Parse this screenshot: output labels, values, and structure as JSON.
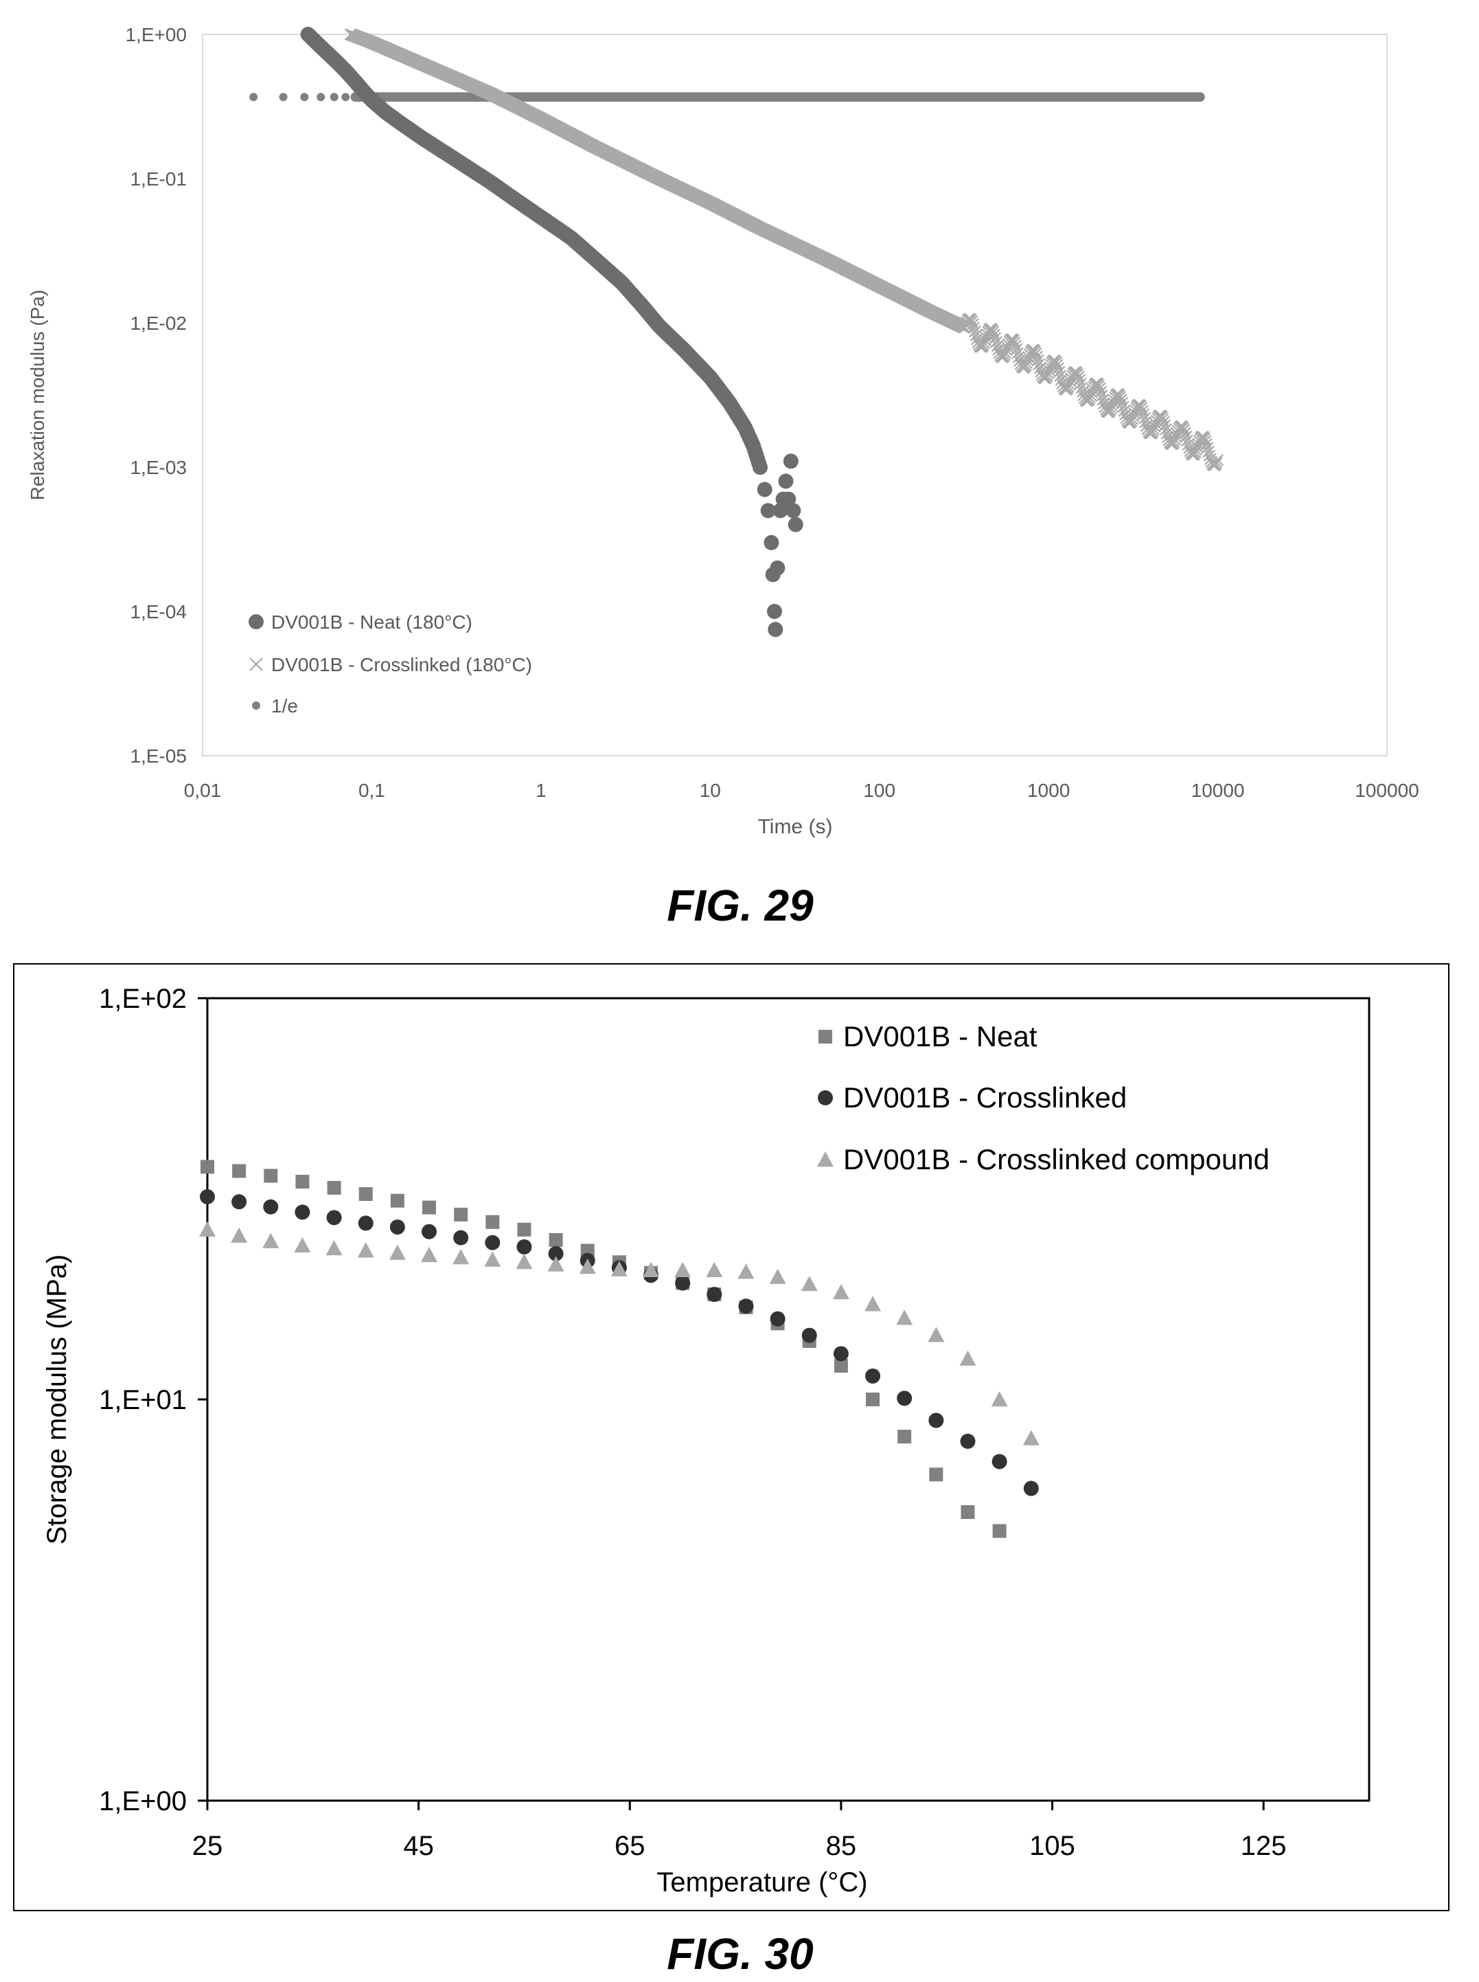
{
  "chart_data": [
    {
      "type": "scatter",
      "figure_caption": "FIG. 29",
      "xlabel": "Time (s)",
      "ylabel": "Relaxation modulus (Pa)",
      "x_scale": "log",
      "y_scale": "log",
      "xlim": [
        0.01,
        100000
      ],
      "ylim": [
        1e-05,
        1
      ],
      "x_tick_labels": [
        "0,01",
        "0,1",
        "1",
        "10",
        "100",
        "1000",
        "10000",
        "100000"
      ],
      "y_tick_labels": [
        "1,E+00",
        "1,E-01",
        "1,E-02",
        "1,E-03",
        "1,E-04",
        "1,E-05"
      ],
      "grid": false,
      "legend_position": "bottom-left",
      "series": [
        {
          "name": "DV001B - Neat (180°C)",
          "marker": "circle",
          "color": "#6d6d6d",
          "points": [
            [
              0.042,
              1.0
            ],
            [
              0.05,
              0.82
            ],
            [
              0.06,
              0.67
            ],
            [
              0.07,
              0.56
            ],
            [
              0.08,
              0.47
            ],
            [
              0.09,
              0.4
            ],
            [
              0.1,
              0.35
            ],
            [
              0.12,
              0.29
            ],
            [
              0.15,
              0.24
            ],
            [
              0.2,
              0.19
            ],
            [
              0.3,
              0.14
            ],
            [
              0.5,
              0.095
            ],
            [
              0.7,
              0.072
            ],
            [
              1.0,
              0.054
            ],
            [
              1.5,
              0.039
            ],
            [
              2.0,
              0.029
            ],
            [
              3.0,
              0.019
            ],
            [
              4.0,
              0.013
            ],
            [
              5.0,
              0.0095
            ],
            [
              7.0,
              0.0065
            ],
            [
              10.0,
              0.0042
            ],
            [
              13.0,
              0.0028
            ],
            [
              16.0,
              0.0019
            ],
            [
              18.0,
              0.0014
            ],
            [
              20.0,
              0.00095
            ],
            [
              21.0,
              0.0007
            ],
            [
              22.0,
              0.0005
            ],
            [
              23.0,
              0.0003
            ],
            [
              23.5,
              0.00018
            ],
            [
              24.0,
              0.0001
            ],
            [
              24.3,
              7.5e-05
            ],
            [
              25.0,
              0.0002
            ],
            [
              26.0,
              0.0005
            ],
            [
              27.0,
              0.0006
            ],
            [
              28.0,
              0.0008
            ],
            [
              29.0,
              0.0006
            ],
            [
              30.0,
              0.0011
            ],
            [
              31.0,
              0.0005
            ],
            [
              32.0,
              0.0004
            ]
          ]
        },
        {
          "name": "DV001B - Crosslinked (180°C)",
          "marker": "cross",
          "color": "#a9a9a9",
          "points": [
            [
              0.075,
              1.0
            ],
            [
              0.1,
              0.88
            ],
            [
              0.2,
              0.62
            ],
            [
              0.5,
              0.39
            ],
            [
              1.0,
              0.26
            ],
            [
              2.0,
              0.17
            ],
            [
              5.0,
              0.1
            ],
            [
              10.0,
              0.068
            ],
            [
              20.0,
              0.045
            ],
            [
              50.0,
              0.027
            ],
            [
              100.0,
              0.018
            ],
            [
              200.0,
              0.012
            ],
            [
              500.0,
              0.0072
            ],
            [
              1000.0,
              0.0048
            ],
            [
              2000.0,
              0.0031
            ],
            [
              5000.0,
              0.0018
            ],
            [
              10000.0,
              0.0012
            ]
          ]
        },
        {
          "name": "1/e",
          "marker": "small-circle",
          "color": "#808080",
          "x_range": [
            0.02,
            8000
          ],
          "y": 0.3679
        }
      ]
    },
    {
      "type": "scatter",
      "figure_caption": "FIG. 30",
      "xlabel": "Temperature (°C)",
      "ylabel": "Storage modulus (MPa)",
      "x_scale": "linear",
      "y_scale": "log",
      "xlim": [
        25,
        135
      ],
      "ylim": [
        1,
        100
      ],
      "x_tick_labels": [
        "25",
        "45",
        "65",
        "85",
        "105",
        "125"
      ],
      "y_tick_labels": [
        "1,E+02",
        "1,E+01",
        "1,E+00"
      ],
      "grid": false,
      "legend_position": "top-right",
      "series": [
        {
          "name": "DV001B - Neat",
          "marker": "square",
          "color": "#808080",
          "points": [
            [
              25,
              38
            ],
            [
              30,
              36.5
            ],
            [
              35,
              34.5
            ],
            [
              40,
              32.5
            ],
            [
              45,
              30.5
            ],
            [
              50,
              28.5
            ],
            [
              55,
              26.5
            ],
            [
              60,
              24
            ],
            [
              65,
              21.5
            ],
            [
              70,
              19.5
            ],
            [
              75,
              17.5
            ],
            [
              80,
              15
            ],
            [
              83,
              13.5
            ],
            [
              86,
              11.5
            ],
            [
              88,
              10
            ],
            [
              90,
              8.7
            ],
            [
              92,
              7.5
            ],
            [
              94,
              6.5
            ],
            [
              96,
              5.6
            ],
            [
              98,
              4.9
            ],
            [
              100,
              4.7
            ]
          ]
        },
        {
          "name": "DV001B - Crosslinked",
          "marker": "circle",
          "color": "#333333",
          "points": [
            [
              25,
              32
            ],
            [
              30,
              30.5
            ],
            [
              35,
              29
            ],
            [
              40,
              27.5
            ],
            [
              45,
              26.5
            ],
            [
              50,
              25
            ],
            [
              55,
              24
            ],
            [
              60,
              22.5
            ],
            [
              65,
              21
            ],
            [
              70,
              19.5
            ],
            [
              75,
              17.5
            ],
            [
              80,
              15.5
            ],
            [
              85,
              13
            ],
            [
              90,
              10.5
            ],
            [
              95,
              8.5
            ],
            [
              100,
              7
            ],
            [
              103,
              6
            ]
          ]
        },
        {
          "name": "DV001B - Crosslinked compound",
          "marker": "triangle",
          "color": "#a9a9a9",
          "points": [
            [
              25,
              26.5
            ],
            [
              30,
              25
            ],
            [
              35,
              24
            ],
            [
              40,
              23.5
            ],
            [
              45,
              23
            ],
            [
              50,
              22.5
            ],
            [
              55,
              22
            ],
            [
              60,
              21.5
            ],
            [
              65,
              21
            ],
            [
              70,
              21
            ],
            [
              75,
              21
            ],
            [
              80,
              20
            ],
            [
              85,
              18.5
            ],
            [
              90,
              16.5
            ],
            [
              95,
              14
            ],
            [
              98,
              12
            ],
            [
              100,
              10
            ],
            [
              102,
              9
            ],
            [
              103,
              8
            ]
          ]
        }
      ]
    }
  ]
}
